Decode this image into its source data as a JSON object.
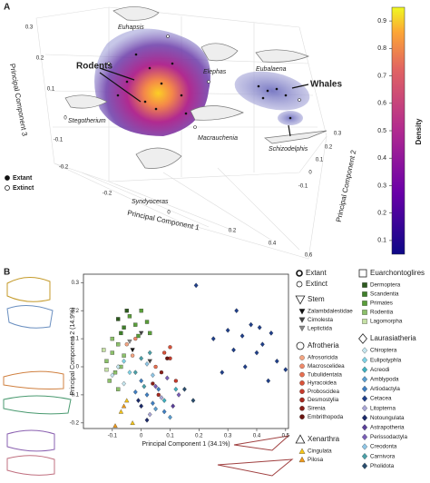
{
  "panel_a": {
    "label": "A",
    "axis_labels": {
      "pc1": "Principal Component 1",
      "pc2": "Principal Component 2",
      "pc3": "Principal Component 3"
    },
    "pc1_ticks": [
      -0.2,
      0,
      0.2,
      0.4,
      0.6
    ],
    "pc2_ticks": [
      -0.1,
      0,
      0.1,
      0.2,
      0.3
    ],
    "pc3_ticks": [
      0.3,
      0.2,
      0.1,
      0,
      -0.1,
      -0.2
    ],
    "annotations": [
      "Rodents",
      "Whales"
    ],
    "taxa": [
      "Euhapsis",
      "Elephas",
      "Eubalaena",
      "Stegotherium",
      "Macrauchenia",
      "Schizodelphis",
      "Syndyoceras"
    ],
    "legend": [
      "Extant",
      "Extinct"
    ],
    "colorbar": {
      "title": "Density",
      "clim": [
        0.05,
        0.95
      ],
      "ticks": [
        0.1,
        0.2,
        0.3,
        0.4,
        0.5,
        0.6,
        0.7,
        0.8,
        0.9
      ]
    }
  },
  "chart_data": {
    "type": "scatter",
    "label": "B",
    "xlabel": "Principal Component 1 (34.1%)",
    "ylabel": "Principal Component 2 (14.9%)",
    "xlim": [
      -0.2,
      0.51
    ],
    "ylim": [
      -0.22,
      0.33
    ],
    "xticks": [
      -0.1,
      0,
      0.1,
      0.2,
      0.3,
      0.4,
      0.5
    ],
    "yticks": [
      -0.2,
      -0.1,
      0,
      0.1,
      0.2,
      0.3
    ],
    "status_legend": [
      "Extant",
      "Extinct"
    ],
    "groups": [
      {
        "name": "Euarchontoglires",
        "marker": "square",
        "series": [
          {
            "name": "Dermoptera",
            "color": "#2d5a1e",
            "x": [
              -0.08,
              -0.05
            ],
            "y": [
              0.17,
              0.2
            ]
          },
          {
            "name": "Scandentia",
            "color": "#3f7f2a",
            "x": [
              -0.07,
              -0.06
            ],
            "y": [
              0.12,
              0.14
            ]
          },
          {
            "name": "Primates",
            "color": "#5a9e3a",
            "x": [
              -0.04,
              -0.02,
              0,
              0.02,
              -0.01,
              0.03
            ],
            "y": [
              0.18,
              0.15,
              0.2,
              0.16,
              0.11,
              0.12
            ]
          },
          {
            "name": "Rodentia",
            "color": "#8cc06a",
            "x": [
              -0.12,
              -0.1,
              -0.09,
              -0.08,
              -0.11,
              -0.07,
              -0.06,
              -0.1,
              -0.08
            ],
            "y": [
              0.02,
              0.05,
              -0.02,
              0.08,
              -0.05,
              0,
              0.04,
              0.1,
              -0.08
            ]
          },
          {
            "name": "Lagomorpha",
            "color": "#c5e0a5",
            "x": [
              -0.13,
              -0.12
            ],
            "y": [
              0.06,
              -0.01
            ]
          }
        ]
      },
      {
        "name": "Stem",
        "marker": "triangle-down",
        "series": [
          {
            "name": "Zalambdalestidae",
            "color": "#111111",
            "x": [
              -0.03
            ],
            "y": [
              0.06
            ]
          },
          {
            "name": "Cimolesta",
            "color": "#444444",
            "x": [
              0,
              0.03
            ],
            "y": [
              0.12,
              0.02
            ]
          },
          {
            "name": "Leptictida",
            "color": "#888888",
            "x": [
              -0.04
            ],
            "y": [
              0.09
            ]
          }
        ]
      },
      {
        "name": "Afrotheria",
        "marker": "circle",
        "series": [
          {
            "name": "Afrosoricida",
            "color": "#f4a582",
            "x": [
              -0.05,
              -0.03
            ],
            "y": [
              0.08,
              0.04
            ]
          },
          {
            "name": "Macroscelidea",
            "color": "#f08a6a",
            "x": [
              -0.02
            ],
            "y": [
              0.1
            ]
          },
          {
            "name": "Tubulidentata",
            "color": "#e86f50",
            "x": [
              0.05
            ],
            "y": [
              0
            ]
          },
          {
            "name": "Hyracoidea",
            "color": "#d9533a",
            "x": [
              0.08,
              0.1
            ],
            "y": [
              0.05,
              0.07
            ]
          },
          {
            "name": "Proboscidea",
            "color": "#c63b2c",
            "x": [
              0.12,
              0.1
            ],
            "y": [
              -0.05,
              0.03
            ]
          },
          {
            "name": "Desmostylia",
            "color": "#a82a20",
            "x": [
              0.06
            ],
            "y": [
              -0.1
            ]
          },
          {
            "name": "Sirenia",
            "color": "#8a1f18",
            "x": [
              0.04,
              0.07
            ],
            "y": [
              -0.06,
              -0.02
            ]
          },
          {
            "name": "Embrithopoda",
            "color": "#6b1510",
            "x": [
              0.09
            ],
            "y": [
              0.03
            ]
          }
        ]
      },
      {
        "name": "Xenarthra",
        "marker": "triangle-up",
        "series": [
          {
            "name": "Cingulata",
            "color": "#f5c518",
            "x": [
              -0.07,
              -0.05,
              -0.03
            ],
            "y": [
              -0.16,
              -0.12,
              -0.2
            ]
          },
          {
            "name": "Pilosa",
            "color": "#f09a1a",
            "x": [
              -0.09,
              -0.06
            ],
            "y": [
              -0.21,
              -0.14
            ]
          }
        ]
      },
      {
        "name": "Laurasiatheria",
        "marker": "diamond",
        "series": [
          {
            "name": "Chiroptera",
            "color": "#c6e6ef",
            "x": [
              -0.1,
              -0.08,
              -0.06
            ],
            "y": [
              -0.03,
              0,
              -0.06
            ]
          },
          {
            "name": "Eulipotyphla",
            "color": "#7fd3e6",
            "x": [
              -0.06,
              -0.04
            ],
            "y": [
              0.02,
              -0.02
            ]
          },
          {
            "name": "Acreodi",
            "color": "#3fb0c0",
            "x": [
              0.08,
              0.12
            ],
            "y": [
              -0.12,
              -0.08
            ]
          },
          {
            "name": "Amblypoda",
            "color": "#5a9ed0",
            "x": [
              0.05,
              0.1
            ],
            "y": [
              -0.15,
              -0.18
            ]
          },
          {
            "name": "Artiodactyla",
            "color": "#3f7fc2",
            "x": [
              0,
              0.02,
              0.04,
              0.06,
              0.08,
              -0.02
            ],
            "y": [
              -0.05,
              -0.1,
              -0.13,
              -0.08,
              -0.16,
              -0.09
            ]
          },
          {
            "name": "Cetacea",
            "color": "#1f3f8a",
            "x": [
              0.25,
              0.3,
              0.32,
              0.35,
              0.38,
              0.4,
              0.42,
              0.45,
              0.47,
              0.28,
              0.36,
              0.44,
              0.5,
              0.33,
              0.19,
              0.41
            ],
            "y": [
              0.1,
              0.13,
              0.06,
              0.11,
              0.15,
              0.05,
              0.08,
              0.12,
              0.02,
              -0.02,
              0,
              -0.05,
              -0.01,
              0.2,
              0.29,
              0.14
            ]
          },
          {
            "name": "Litopterna",
            "color": "#a9a6d6",
            "x": [
              0.03,
              0.07
            ],
            "y": [
              -0.17,
              -0.11
            ]
          },
          {
            "name": "Notoungulata",
            "color": "#1b2a6a",
            "x": [
              0,
              0.02,
              -0.01
            ],
            "y": [
              -0.14,
              -0.19,
              -0.12
            ]
          },
          {
            "name": "Astrapotheria",
            "color": "#5a3f9a",
            "x": [
              0.11
            ],
            "y": [
              -0.14
            ]
          },
          {
            "name": "Perissodactyla",
            "color": "#7a5fb8",
            "x": [
              0.05,
              0.09,
              0.13
            ],
            "y": [
              -0.07,
              -0.04,
              -0.1
            ]
          },
          {
            "name": "Creodonta",
            "color": "#8fc6e6",
            "x": [
              0.02,
              0.04
            ],
            "y": [
              0.01,
              -0.03
            ]
          },
          {
            "name": "Carnivora",
            "color": "#4aa0a8",
            "x": [
              -0.02,
              0,
              0.01,
              0.03
            ],
            "y": [
              -0.02,
              0.03,
              -0.07,
              0.05
            ]
          },
          {
            "name": "Pholidota",
            "color": "#2a4d6e",
            "x": [
              0.15,
              0.18
            ],
            "y": [
              -0.08,
              -0.12
            ]
          }
        ]
      }
    ]
  }
}
